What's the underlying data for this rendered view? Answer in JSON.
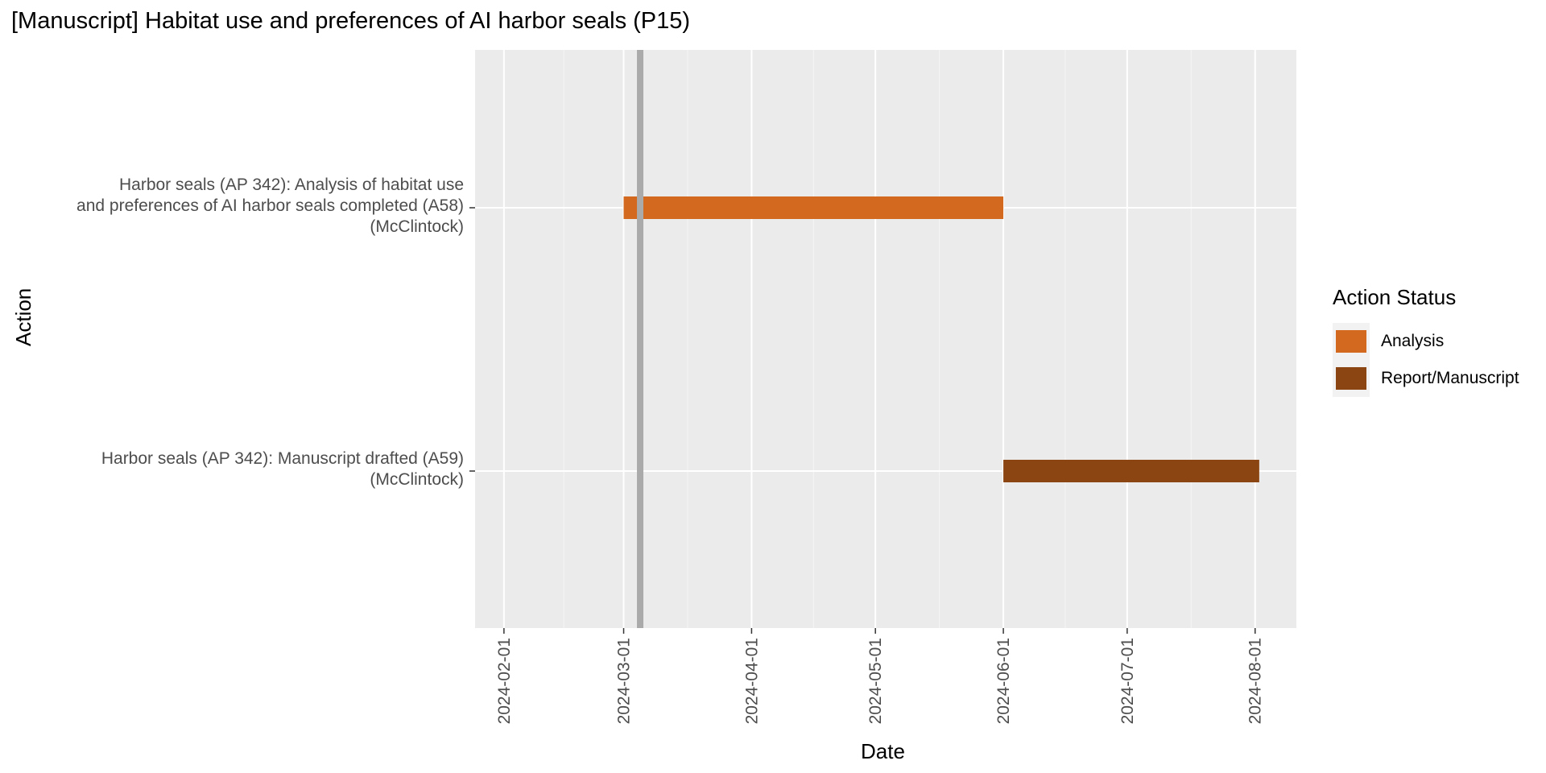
{
  "chart_data": {
    "type": "gantt",
    "title": "[Manuscript] Habitat use and preferences of AI harbor seals (P15)",
    "xlabel": "Date",
    "ylabel": "Action",
    "xlim": [
      "2024-01-25",
      "2024-08-11"
    ],
    "x_ticks": [
      "2024-02-01",
      "2024-03-01",
      "2024-04-01",
      "2024-05-01",
      "2024-06-01",
      "2024-07-01",
      "2024-08-01"
    ],
    "reference_line": {
      "date": "2024-03-05",
      "color": "#aaaaaa"
    },
    "tasks": [
      {
        "label_lines": [
          "Harbor seals (AP 342): Analysis of habitat use",
          "and preferences of AI harbor seals completed (A58)",
          "(McClintock)"
        ],
        "start": "2024-03-01",
        "end": "2024-06-01",
        "status": "Analysis"
      },
      {
        "label_lines": [
          "Harbor seals (AP 342): Manuscript drafted (A59)",
          "(McClintock)"
        ],
        "start": "2024-06-01",
        "end": "2024-08-02",
        "status": "Report/Manuscript"
      }
    ],
    "legend": {
      "title": "Action Status",
      "position": "right",
      "entries": [
        {
          "label": "Analysis",
          "color": "#D2691E"
        },
        {
          "label": "Report/Manuscript",
          "color": "#8B4513"
        }
      ]
    },
    "grid": true,
    "panel_background": "#ebebeb"
  }
}
